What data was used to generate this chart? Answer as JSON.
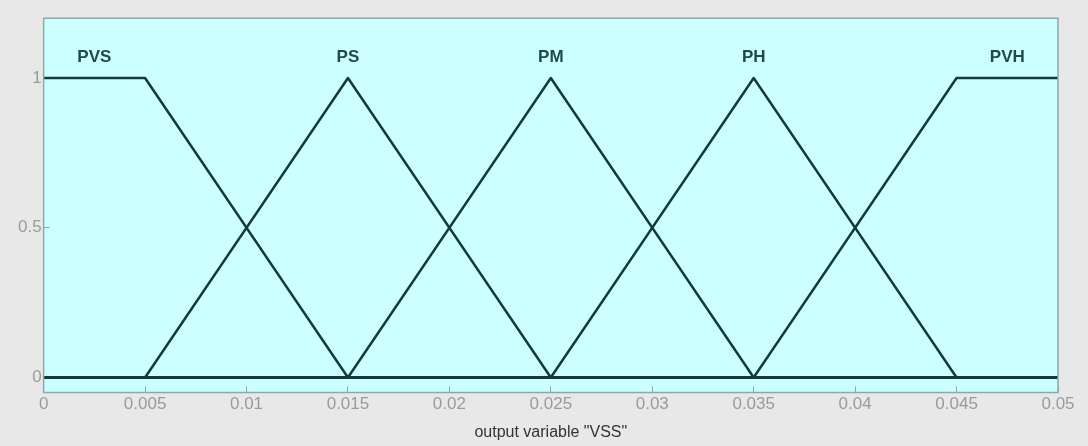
{
  "chart_data": {
    "type": "line",
    "xlabel": "output variable \"VSS\"",
    "xlim": [
      0,
      0.05
    ],
    "xticks": [
      0,
      0.005,
      0.01,
      0.015,
      0.02,
      0.025,
      0.03,
      0.035,
      0.04,
      0.045,
      0.05
    ],
    "ylim": [
      -0.05,
      1.2
    ],
    "yticks": [
      0,
      0.5,
      1
    ],
    "grid": false,
    "legend": false,
    "marker": "none",
    "line_style": "solid",
    "series": [
      {
        "name": "PVS",
        "color": "#123a3a",
        "x": [
          0,
          0.005,
          0.015,
          0.05
        ],
        "values": [
          1,
          1,
          0,
          0
        ]
      },
      {
        "name": "PS",
        "color": "#123a3a",
        "x": [
          0,
          0.005,
          0.015,
          0.025,
          0.05
        ],
        "values": [
          0,
          0,
          1,
          0,
          0
        ]
      },
      {
        "name": "PM",
        "color": "#123a3a",
        "x": [
          0,
          0.015,
          0.025,
          0.035,
          0.05
        ],
        "values": [
          0,
          0,
          1,
          0,
          0
        ]
      },
      {
        "name": "PH",
        "color": "#123a3a",
        "x": [
          0,
          0.025,
          0.035,
          0.045,
          0.05
        ],
        "values": [
          0,
          0,
          1,
          0,
          0
        ]
      },
      {
        "name": "PVH",
        "color": "#123a3a",
        "x": [
          0,
          0.035,
          0.045,
          0.05
        ],
        "values": [
          0,
          0,
          1,
          1
        ]
      }
    ]
  }
}
